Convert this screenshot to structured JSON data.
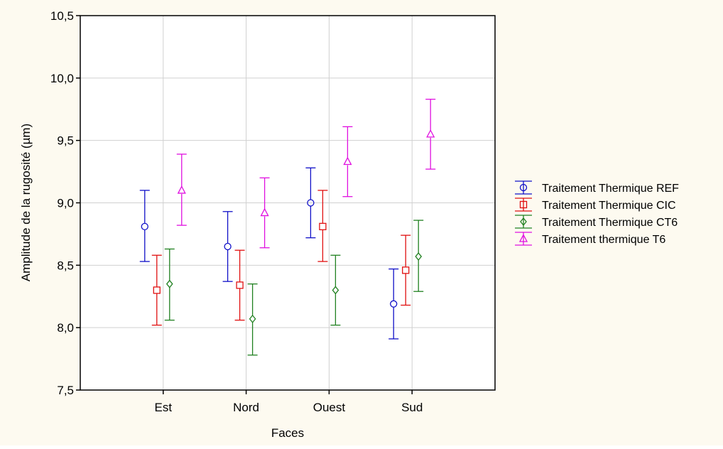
{
  "colors": {
    "background": "#fdfaf0",
    "plot_background": "#ffffff",
    "grid": "#d0d0d0",
    "series": [
      "#1010c8",
      "#e01010",
      "#208020",
      "#e010e0"
    ]
  },
  "chart_data": {
    "type": "scatter",
    "subtype": "means-with-error-bars",
    "xlabel": "Faces",
    "ylabel": "Amplitude de la rugosité (µm)",
    "categories": [
      "Est",
      "Nord",
      "Ouest",
      "Sud"
    ],
    "ylim": [
      7.5,
      10.5
    ],
    "yticks": [
      "7,5",
      "8,0",
      "8,5",
      "9,0",
      "9,5",
      "10,0",
      "10,5"
    ],
    "ytick_values": [
      7.5,
      8.0,
      8.5,
      9.0,
      9.5,
      10.0,
      10.5
    ],
    "grid": true,
    "legend_position": "right",
    "series": [
      {
        "name": "Traitement Thermique REF",
        "marker": "circle",
        "values": [
          8.81,
          8.65,
          9.0,
          8.19
        ],
        "lower": [
          8.53,
          8.37,
          8.72,
          7.91
        ],
        "upper": [
          9.1,
          8.93,
          9.28,
          8.47
        ]
      },
      {
        "name": "Traitement Thermique CIC",
        "marker": "square",
        "values": [
          8.3,
          8.34,
          8.81,
          8.46
        ],
        "lower": [
          8.02,
          8.06,
          8.53,
          8.18
        ],
        "upper": [
          8.58,
          8.62,
          9.1,
          8.74
        ]
      },
      {
        "name": "Traitement Thermique CT6",
        "marker": "diamond",
        "values": [
          8.35,
          8.07,
          8.3,
          8.57
        ],
        "lower": [
          8.06,
          7.78,
          8.02,
          8.29
        ],
        "upper": [
          8.63,
          8.35,
          8.58,
          8.86
        ]
      },
      {
        "name": "Traitement thermique T6",
        "marker": "triangle",
        "values": [
          9.1,
          8.92,
          9.33,
          9.55
        ],
        "lower": [
          8.82,
          8.64,
          9.05,
          9.27
        ],
        "upper": [
          9.39,
          9.2,
          9.61,
          9.83
        ]
      }
    ]
  }
}
